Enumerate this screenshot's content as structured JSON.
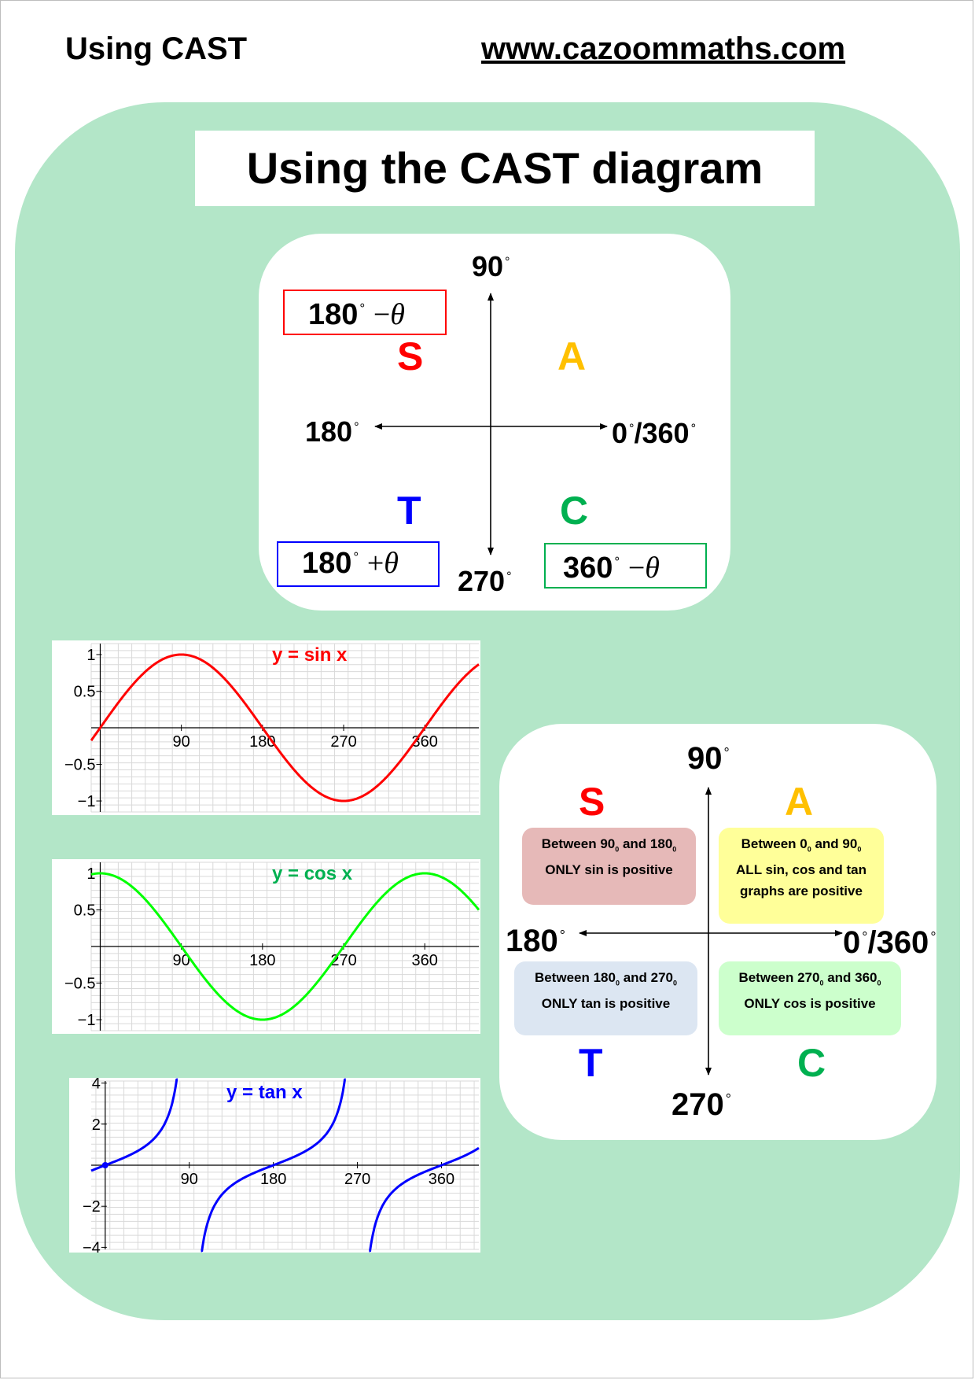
{
  "header": {
    "left": "Using CAST",
    "right": "www.cazoommaths.com"
  },
  "title": "Using the CAST diagram",
  "colors": {
    "panel": "#b3e6c8",
    "sin": "#ff0000",
    "cos": "#00ff00",
    "tan": "#0000ff",
    "S": "#ff0000",
    "A": "#ffc000",
    "T": "#0000ff",
    "C": "#00b050"
  },
  "cast_diagram_1": {
    "top": "90",
    "left": "180",
    "right": "0",
    "right_b": "/360",
    "bottom": "270",
    "S": "S",
    "A": "A",
    "T": "T",
    "C": "C",
    "box_S": "180",
    "box_T": "180",
    "box_C": "360",
    "minus": "−",
    "plus": "+",
    "theta": "θ"
  },
  "cast_diagram_2": {
    "top": "90",
    "left": "180",
    "right": "0",
    "right_b": "/360",
    "bottom": "270",
    "S": "S",
    "A": "A",
    "T": "T",
    "C": "C",
    "info_S": {
      "a": "Between 90",
      "b": " and 180",
      "line2": "ONLY sin is positive",
      "sup": "0"
    },
    "info_A": {
      "a": "Between 0",
      "b": " and 90",
      "line2": "ALL sin, cos and tan",
      "line3": "graphs are positive",
      "sup": "0"
    },
    "info_T": {
      "a": "Between 180",
      "b": " and 270",
      "line2": "ONLY tan is positive",
      "sup": "0"
    },
    "info_C": {
      "a": "Between 270",
      "b": " and 360",
      "line2": "ONLY cos is positive",
      "sup": "0"
    }
  },
  "chart_data": [
    {
      "type": "line",
      "title": "y = sin x",
      "function": "sin",
      "xlim": [
        -10,
        420
      ],
      "ylim": [
        -1.15,
        1.15
      ],
      "xticks": [
        "90",
        "180",
        "270",
        "360"
      ],
      "yticks": [
        "1",
        "0.5",
        "−0.5",
        "−1"
      ],
      "grid": true
    },
    {
      "type": "line",
      "title": "y = cos x",
      "function": "cos",
      "xlim": [
        -10,
        420
      ],
      "ylim": [
        -1.15,
        1.15
      ],
      "xticks": [
        "90",
        "180",
        "270",
        "360"
      ],
      "yticks": [
        "1",
        "0.5",
        "−0.5",
        "−1"
      ],
      "grid": true
    },
    {
      "type": "line",
      "title": "y = tan x",
      "function": "tan",
      "xlim": [
        -15,
        400
      ],
      "ylim": [
        -4.1,
        4.1
      ],
      "xticks": [
        "90",
        "180",
        "270",
        "360"
      ],
      "yticks": [
        "4",
        "2",
        "−2",
        "−4"
      ],
      "grid": true
    }
  ]
}
